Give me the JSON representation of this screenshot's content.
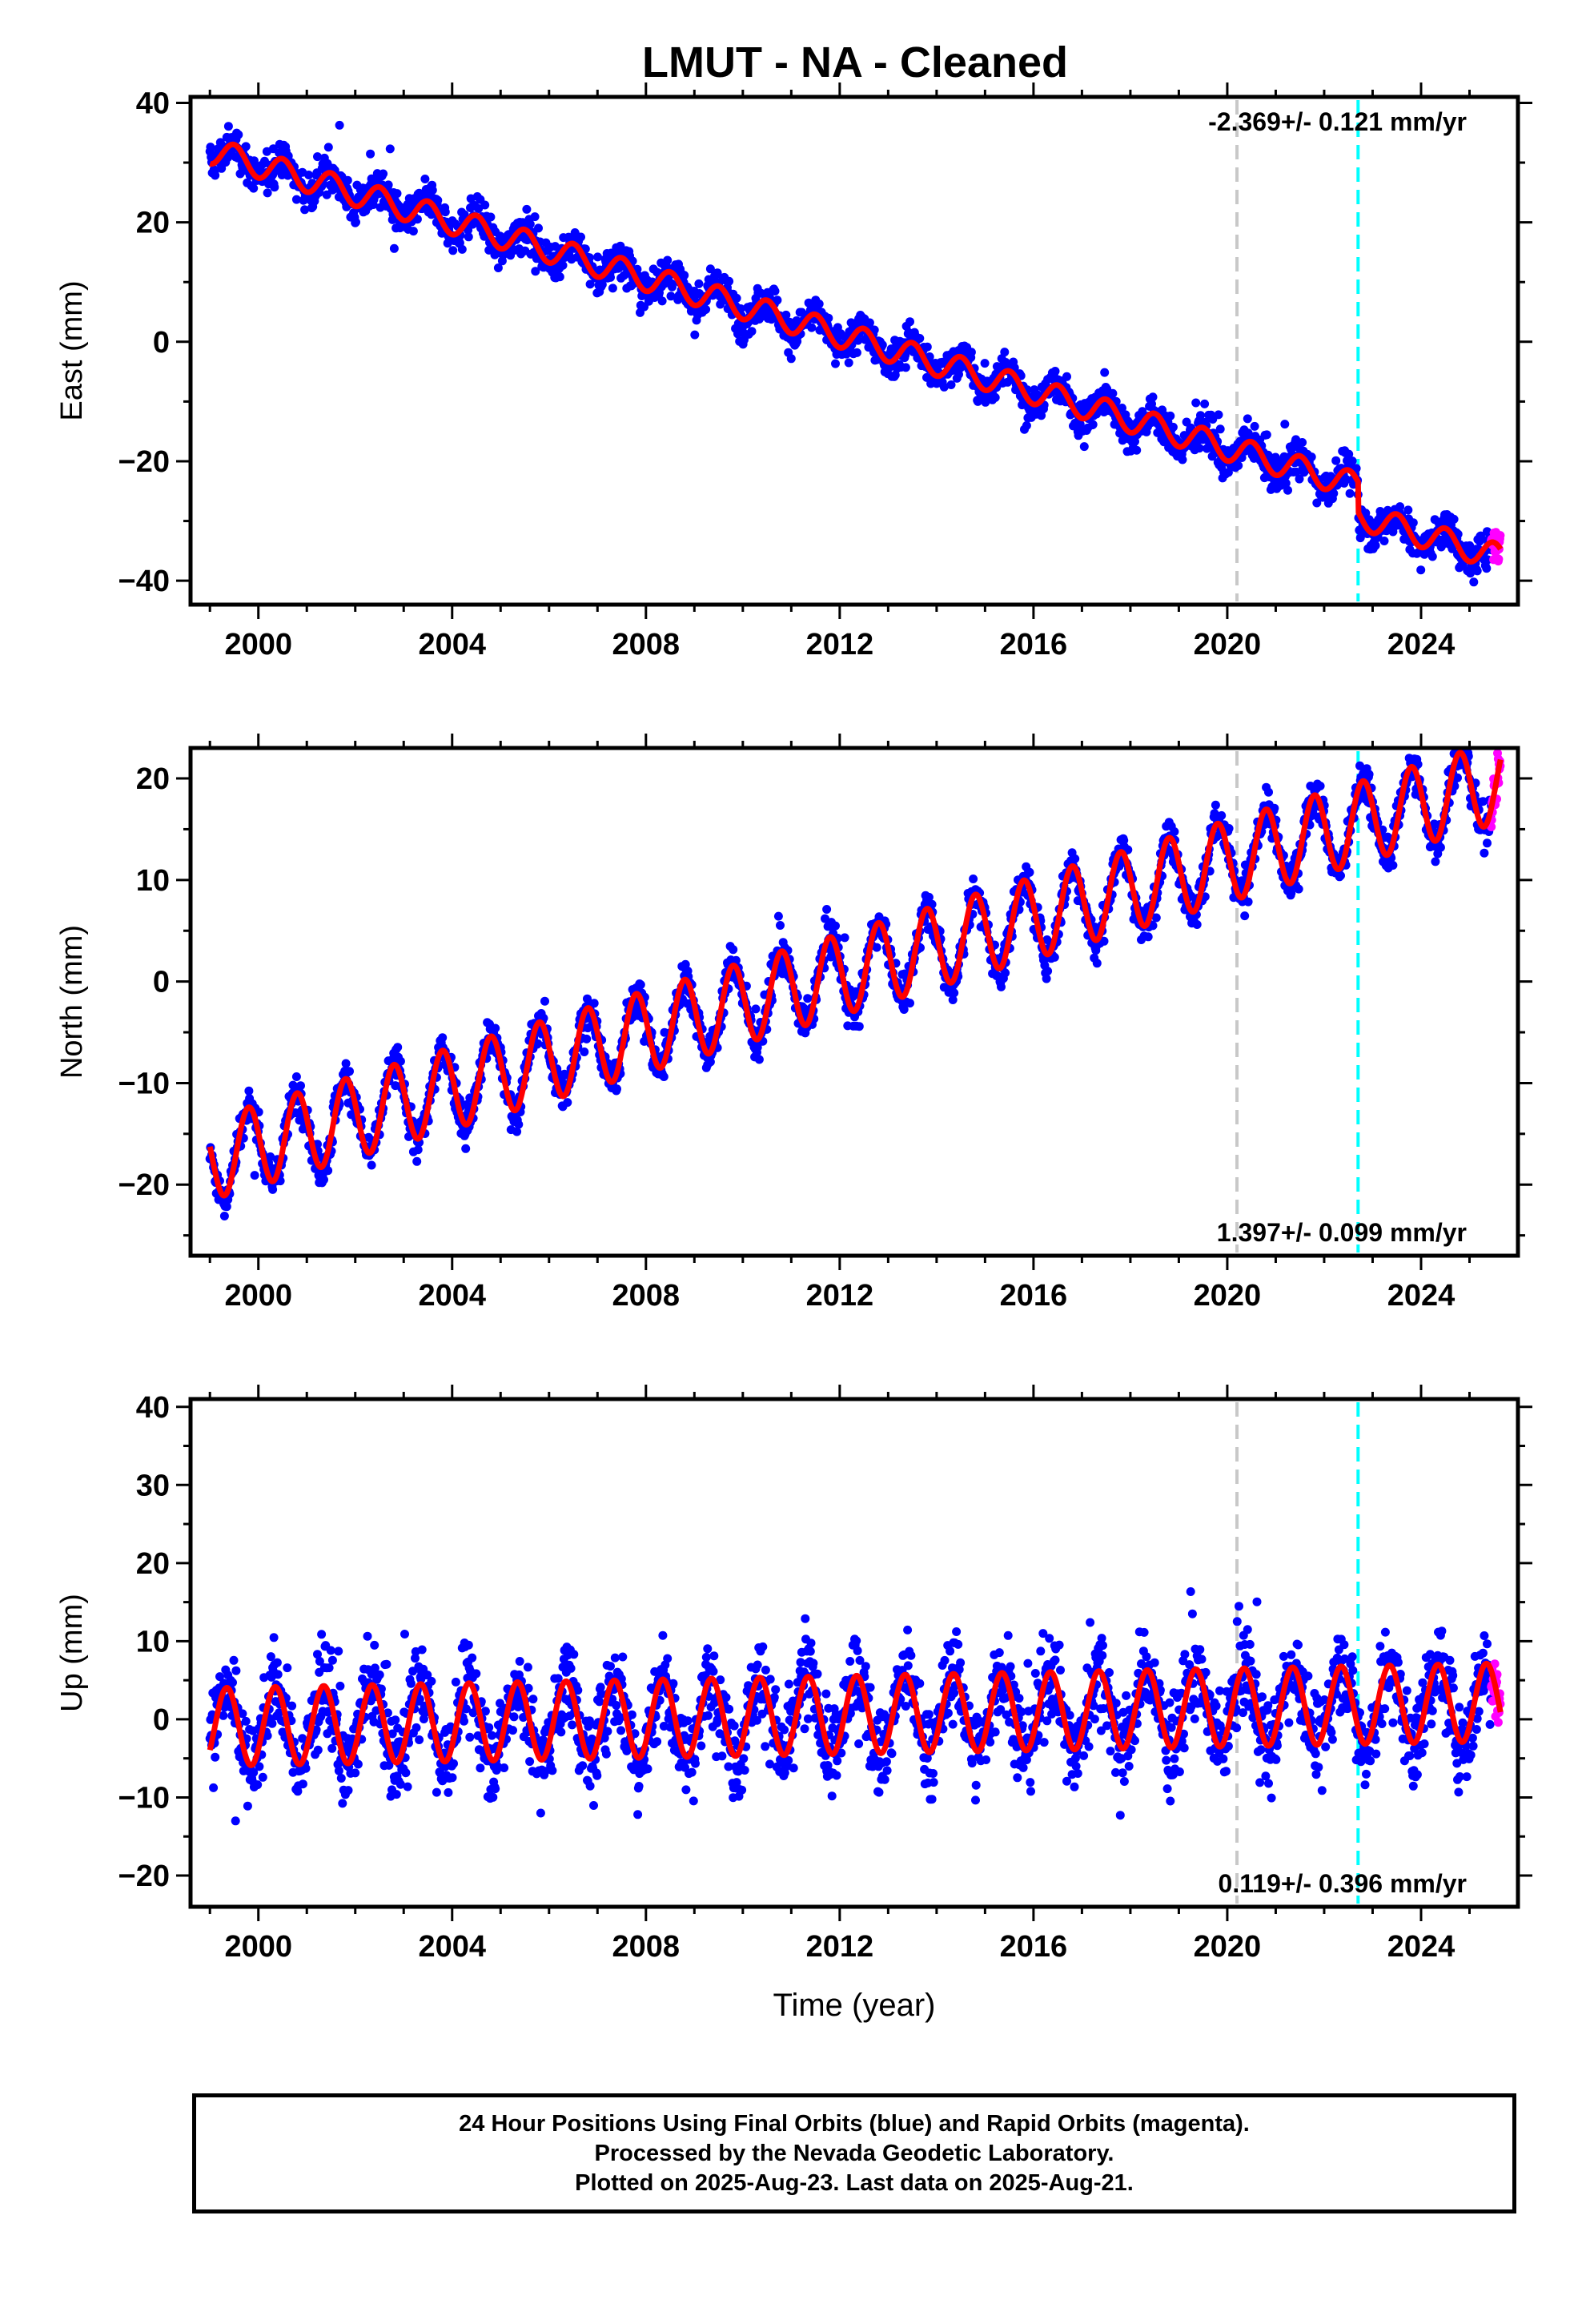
{
  "title": "LMUT  - NA - Cleaned",
  "footer": {
    "line1": "24 Hour Positions Using Final Orbits (blue) and Rapid Orbits (magenta).",
    "line2": "Processed by the Nevada Geodetic Laboratory.",
    "line3": "Plotted on 2025-Aug-23. Last data on 2025-Aug-21."
  },
  "colors": {
    "final_orbits": "#0000ff",
    "rapid_orbits": "#ff00ff",
    "model": "#ff0000",
    "event_gray": "#c8c8c8",
    "event_cyan": "#00ffff"
  },
  "chart_data": [
    {
      "type": "scatter",
      "name": "east",
      "ylabel": "East (mm)",
      "xlabel": "",
      "xlim": [
        1998.6,
        2026.0
      ],
      "ylim": [
        -44,
        41
      ],
      "xticks": [
        2000,
        2004,
        2008,
        2012,
        2016,
        2020,
        2024
      ],
      "yticks": [
        -40,
        -20,
        0,
        20,
        40
      ],
      "rate_label": "-2.369+/- 0.121 mm/yr",
      "rate_position": "top-right",
      "trend": {
        "start_year": 1999.0,
        "start_value": 32.0,
        "rate": -2.369,
        "amplitude": 2.2,
        "seasonal_phase": 0.25,
        "offsets": [
          {
            "year": 2022.7,
            "value": -5.0
          }
        ],
        "noise": 2.2
      },
      "event_lines": [
        {
          "year": 2020.2,
          "color": "gray"
        },
        {
          "year": 2022.7,
          "color": "cyan"
        }
      ],
      "rapid_range": [
        2025.45,
        2025.64
      ],
      "grid": false
    },
    {
      "type": "scatter",
      "name": "north",
      "ylabel": "North (mm)",
      "xlabel": "",
      "xlim": [
        1998.6,
        2026.0
      ],
      "ylim": [
        -27,
        23
      ],
      "xticks": [
        2000,
        2004,
        2008,
        2012,
        2016,
        2020,
        2024
      ],
      "yticks": [
        -20,
        -10,
        0,
        10,
        20
      ],
      "rate_label": "1.397+/- 0.099 mm/yr",
      "rate_position": "bottom-right",
      "trend": {
        "start_year": 1999.0,
        "start_value": -17.5,
        "rate": 1.397,
        "amplitude": 4.0,
        "seasonal_phase": 0.55,
        "offsets": [],
        "noise": 1.4
      },
      "event_lines": [
        {
          "year": 2020.2,
          "color": "gray"
        },
        {
          "year": 2022.7,
          "color": "cyan"
        }
      ],
      "rapid_range": [
        2025.45,
        2025.64
      ],
      "grid": false
    },
    {
      "type": "scatter",
      "name": "up",
      "ylabel": "Up (mm)",
      "xlabel": "Time (year)",
      "xlim": [
        1998.6,
        2026.0
      ],
      "ylim": [
        -24,
        41
      ],
      "xticks": [
        2000,
        2004,
        2008,
        2012,
        2016,
        2020,
        2024
      ],
      "yticks": [
        -20,
        -10,
        0,
        10,
        20,
        30,
        40
      ],
      "rate_label": "0.119+/- 0.396 mm/yr",
      "rate_position": "bottom-right",
      "trend": {
        "start_year": 1999.0,
        "start_value": -1.0,
        "rate": 0.119,
        "amplitude": 5.0,
        "seasonal_phase": 0.1,
        "offsets": [],
        "noise": 4.0
      },
      "event_lines": [
        {
          "year": 2020.2,
          "color": "gray"
        },
        {
          "year": 2022.7,
          "color": "cyan"
        }
      ],
      "rapid_range": [
        2025.45,
        2025.64
      ],
      "grid": false
    }
  ]
}
